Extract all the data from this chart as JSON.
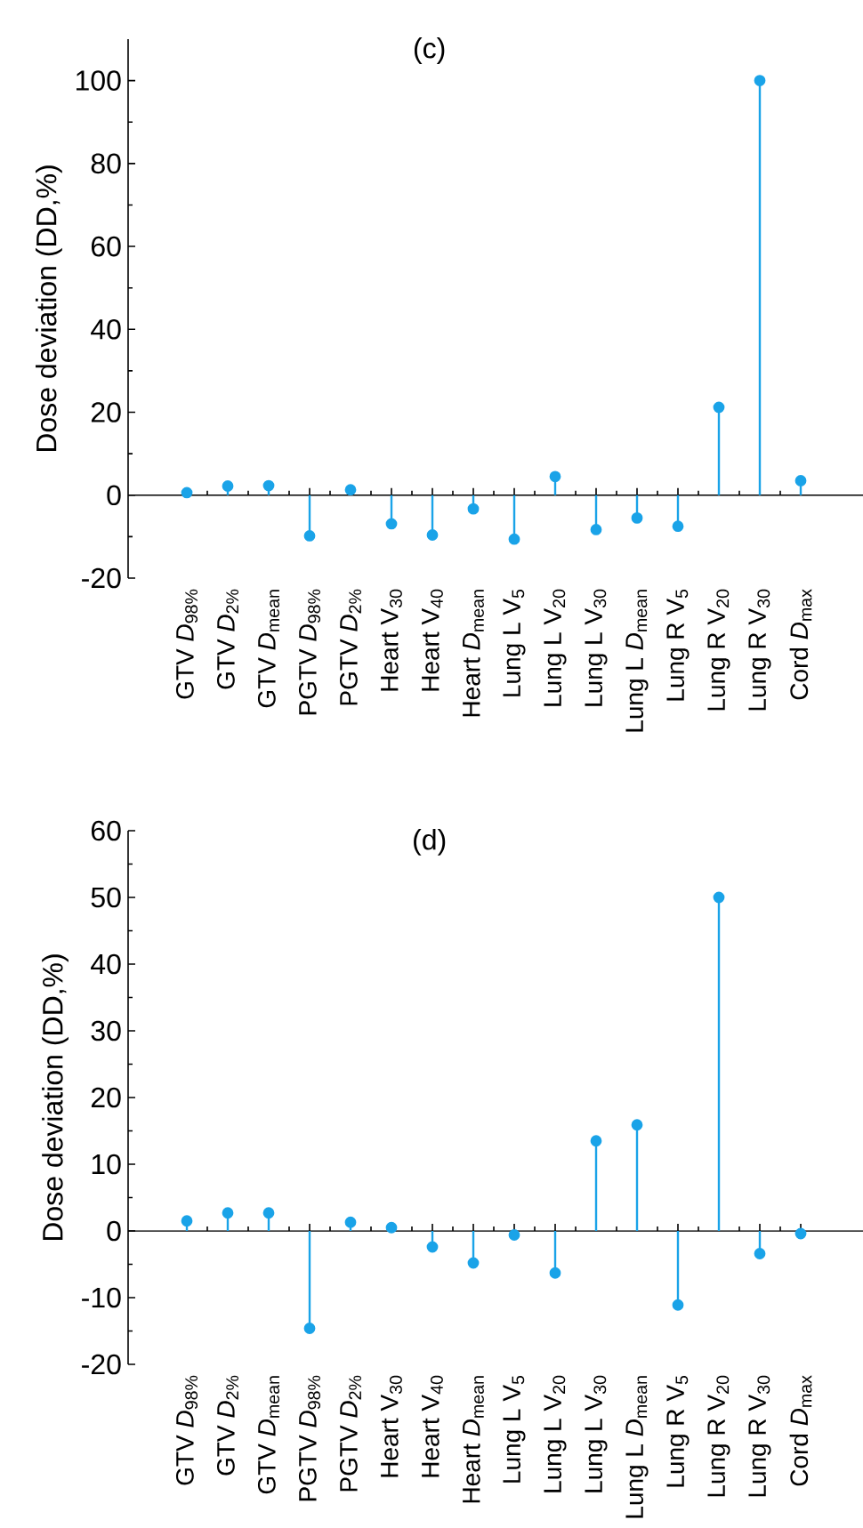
{
  "chart_data": [
    {
      "type": "lollipop",
      "title": "(c)",
      "ylabel": "Dose deviation (DD,%)",
      "categories": [
        "GTV *D*$_{98%}$",
        "GTV *D*$_{2%}$",
        "GTV *D*$_{mean}$",
        "PGTV *D*$_{98%}$",
        "PGTV *D*$_{2%}$",
        "Heart V$_{30}$",
        "Heart V$_{40}$",
        "Heart *D*$_{mean}$",
        "Lung L V$_{5}$",
        "Lung L V$_{20}$",
        "Lung L V$_{30}$",
        "Lung L *D*$_{mean}$",
        "Lung R V$_{5}$",
        "Lung R V$_{20}$",
        "Lung R V$_{30}$",
        "Cord *D*$_{max}$"
      ],
      "values": [
        0.6,
        2.2,
        2.3,
        -9.8,
        1.3,
        -6.9,
        -9.6,
        -3.3,
        -10.6,
        4.5,
        -8.3,
        -5.5,
        -7.5,
        21.2,
        100,
        3.5
      ],
      "color": "#1aa3e8",
      "marker": "circle",
      "ylim": [
        -20,
        110
      ],
      "yticks": [
        -20,
        0,
        20,
        40,
        60,
        80,
        100
      ]
    },
    {
      "type": "lollipop",
      "title": "(d)",
      "ylabel": "Dose deviation (DD,%)",
      "categories": [
        "GTV *D*$_{98%}$",
        "GTV *D*$_{2%}$",
        "GTV *D*$_{mean}$",
        "PGTV *D*$_{98%}$",
        "PGTV *D*$_{2%}$",
        "Heart V$_{30}$",
        "Heart V$_{40}$",
        "Heart *D*$_{mean}$",
        "Lung L V$_{5}$",
        "Lung L V$_{20}$",
        "Lung L V$_{30}$",
        "Lung L *D*$_{mean}$",
        "Lung R V$_{5}$",
        "Lung R V$_{20}$",
        "Lung R V$_{30}$",
        "Cord *D*$_{max}$"
      ],
      "values": [
        1.5,
        2.7,
        2.7,
        -14.6,
        1.3,
        0.5,
        -2.4,
        -4.8,
        -0.6,
        -6.3,
        13.5,
        15.9,
        -11.1,
        50,
        -3.4,
        -0.4
      ],
      "color": "#1aa3e8",
      "marker": "circle",
      "ylim": [
        -20,
        60
      ],
      "yticks": [
        -20,
        -10,
        0,
        10,
        20,
        30,
        40,
        50,
        60
      ]
    }
  ]
}
